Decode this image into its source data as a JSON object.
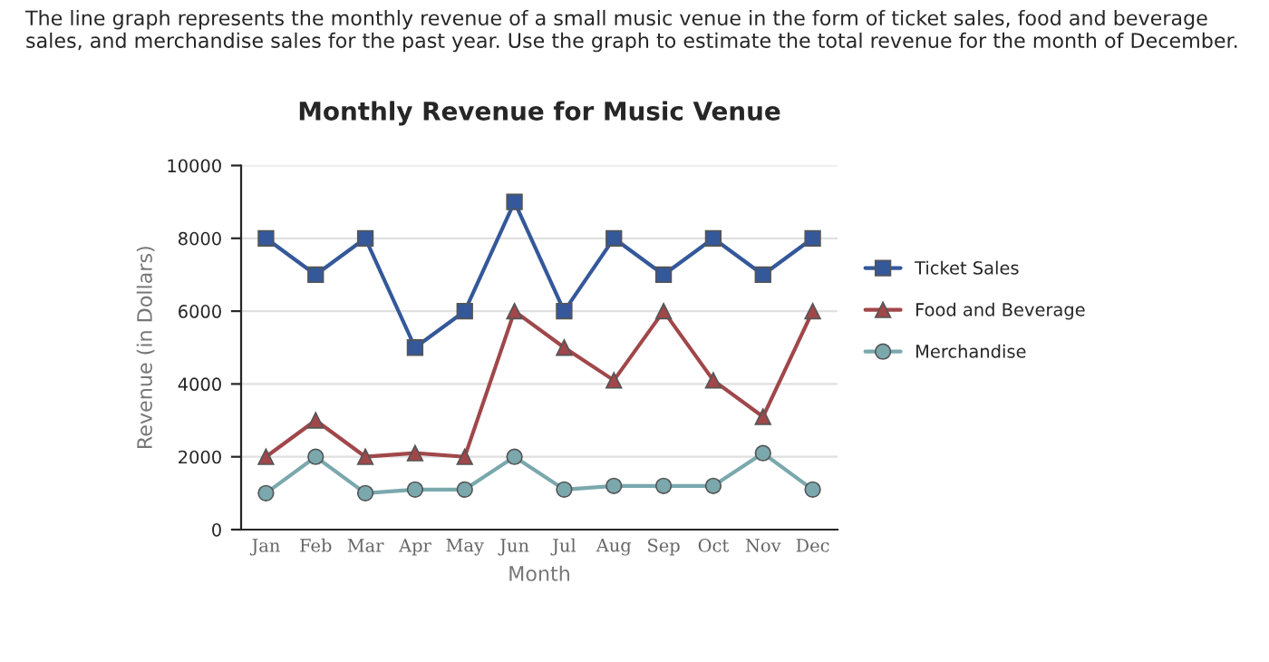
{
  "chart_data": {
    "type": "line",
    "title": "Monthly Revenue for Music Venue",
    "xlabel": "Month",
    "ylabel": "Revenue (in Dollars)",
    "annotations": [
      "The line graph represents the monthly revenue of a small music venue in the form of ticket sales, food and beverage sales, and merchandise sales for the past year. Use the graph to estimate the total revenue for the month of December."
    ],
    "categories": [
      "Jan",
      "Feb",
      "Mar",
      "Apr",
      "May",
      "Jun",
      "Jul",
      "Aug",
      "Sep",
      "Oct",
      "Nov",
      "Dec"
    ],
    "series": [
      {
        "name": "Ticket Sales",
        "color": "#34589a",
        "marker": "square",
        "values": [
          8000,
          7000,
          8000,
          5000,
          6000,
          9000,
          6000,
          8000,
          7000,
          8000,
          7000,
          8000
        ]
      },
      {
        "name": "Food and Beverage",
        "color": "#a0474a",
        "marker": "triangle",
        "values": [
          2000,
          3000,
          2000,
          2100,
          2000,
          6000,
          5000,
          4100,
          6000,
          4100,
          3100,
          6000
        ]
      },
      {
        "name": "Merchandise",
        "color": "#7aa8ad",
        "marker": "circle",
        "values": [
          1000,
          2000,
          1000,
          1100,
          1100,
          2000,
          1100,
          1200,
          1200,
          1200,
          2100,
          1100
        ]
      }
    ],
    "ylim": [
      0,
      10000
    ],
    "yticks": [
      0,
      2000,
      4000,
      6000,
      8000,
      10000
    ],
    "grid": "y",
    "legend": "right",
    "line_style": "solid"
  }
}
